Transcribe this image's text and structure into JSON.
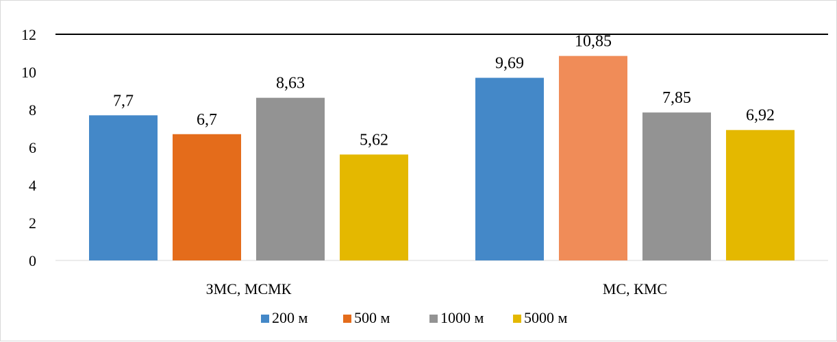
{
  "chart_data": {
    "type": "bar",
    "categories": [
      "ЗМС, МСМК",
      "МС, КМС"
    ],
    "series": [
      {
        "name": "200 м",
        "values": [
          7.7,
          9.69
        ],
        "labels": [
          "7,7",
          "9,69"
        ],
        "color": "#4488C8"
      },
      {
        "name": "500 м",
        "values": [
          6.7,
          10.85
        ],
        "labels": [
          "6,7",
          "10,85"
        ],
        "color": "#E46C1B",
        "point_colors": [
          "#E46C1B",
          "#F08C58"
        ]
      },
      {
        "name": "1000 м",
        "values": [
          8.63,
          7.85
        ],
        "labels": [
          "8,63",
          "7,85"
        ],
        "color": "#939393"
      },
      {
        "name": "5000 м",
        "values": [
          5.62,
          6.92
        ],
        "labels": [
          "5,62",
          "6,92"
        ],
        "color": "#E4B800"
      }
    ],
    "ylim": [
      0,
      12
    ],
    "yticks": [
      "0",
      "2",
      "4",
      "6",
      "8",
      "10",
      "12"
    ],
    "reference_line": {
      "value": 12,
      "color": "#000000"
    },
    "grid": false,
    "legend": "bottom",
    "title": "",
    "xlabel": "",
    "ylabel": ""
  }
}
